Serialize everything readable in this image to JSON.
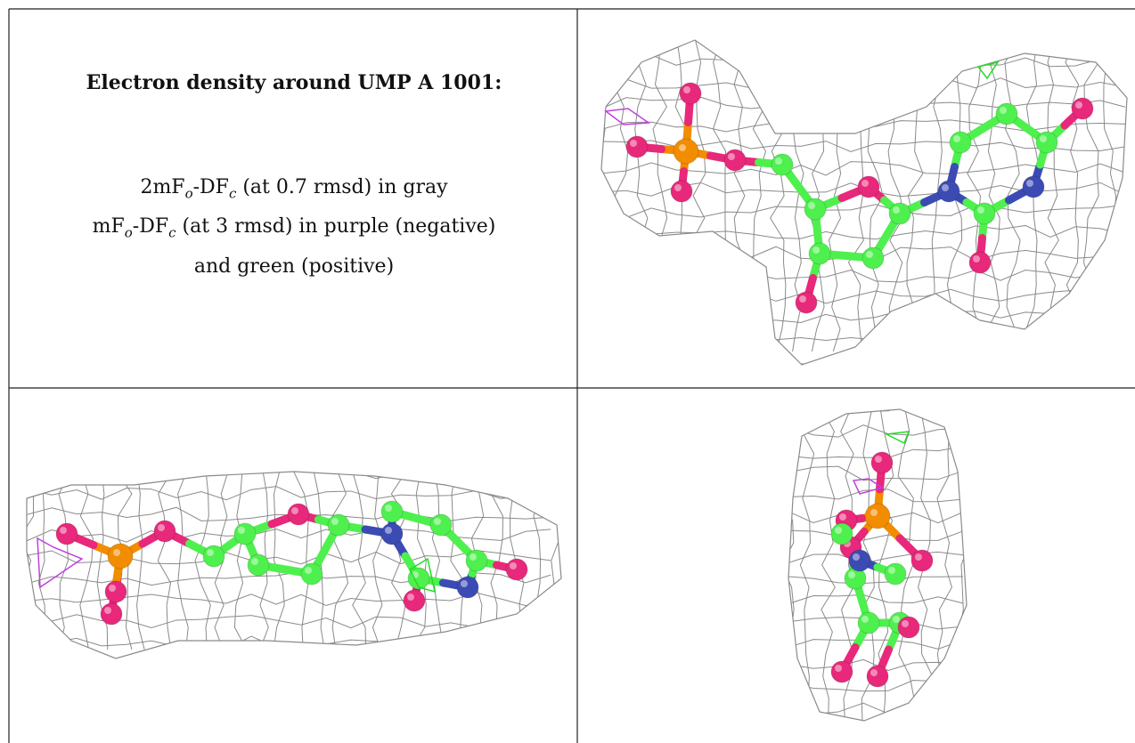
{
  "caption": {
    "title": "Electron density around UMP A 1001:",
    "legend_lines": [
      [
        "2mF",
        "o",
        "-DF",
        "c",
        " (at 0.7 rmsd) in gray"
      ],
      [
        "mF",
        "o",
        "-DF",
        "c",
        " (at 3 rmsd) in purple (negative)"
      ],
      [
        "and green (positive)"
      ]
    ]
  }
}
